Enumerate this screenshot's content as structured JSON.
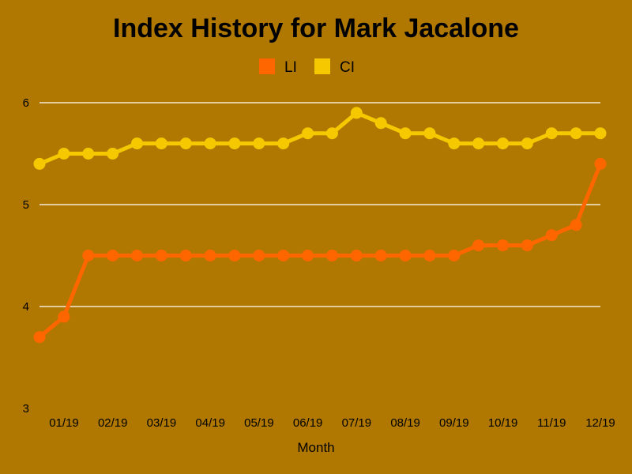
{
  "chart_data": {
    "type": "line",
    "title": "Index History for Mark Jacalone",
    "xlabel": "Month",
    "ylabel": "",
    "ylim": [
      3,
      6
    ],
    "yticks": [
      "3",
      "4",
      "5",
      "6"
    ],
    "grid": "horizontal",
    "legend_position": "top-center",
    "x_tick_labels": [
      "01/19",
      "02/19",
      "03/19",
      "04/19",
      "05/19",
      "06/19",
      "07/19",
      "08/19",
      "09/19",
      "10/19",
      "11/19",
      "12/19"
    ],
    "series": [
      {
        "name": "LI",
        "color": "#ff6600",
        "values": [
          3.7,
          3.9,
          4.5,
          4.5,
          4.5,
          4.5,
          4.5,
          4.5,
          4.5,
          4.5,
          4.5,
          4.5,
          4.5,
          4.5,
          4.5,
          4.5,
          4.5,
          4.5,
          4.6,
          4.6,
          4.6,
          4.7,
          4.8,
          5.4
        ]
      },
      {
        "name": "CI",
        "color": "#f5c800",
        "values": [
          5.4,
          5.5,
          5.5,
          5.5,
          5.6,
          5.6,
          5.6,
          5.6,
          5.6,
          5.6,
          5.6,
          5.7,
          5.7,
          5.9,
          5.8,
          5.7,
          5.7,
          5.6,
          5.6,
          5.6,
          5.6,
          5.7,
          5.7,
          5.7
        ]
      }
    ]
  }
}
